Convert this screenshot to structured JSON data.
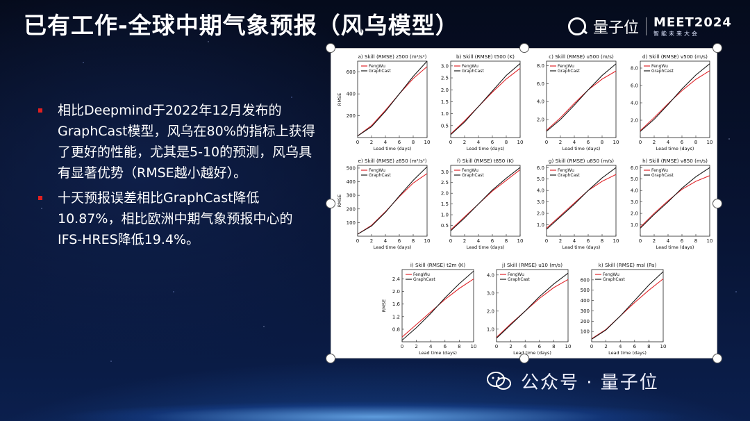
{
  "slide": {
    "title": "已有工作-全球中期气象预报（风乌模型）",
    "bullets": [
      "相比Deepmind于2022年12月发布的GraphCast模型，风乌在80%的指标上获得了更好的性能，尤其是5-10的预测，风乌具有显著优势（RMSE越小越好）。",
      "十天预报误差相比GraphCast降低10.87%，相比欧洲中期气象预报中心的IFS-HRES降低19.4%。"
    ]
  },
  "logo": {
    "brand": "量子位",
    "event": "MEET2024",
    "event_sub": "智能未来大会"
  },
  "watermark": {
    "text": "公众号 · 量子位"
  },
  "colors": {
    "fengwu": "#e0262b",
    "graphcast": "#1a1a1a",
    "bullet": "#e02020"
  },
  "chart_data": [
    {
      "type": "line",
      "title": "a) Skill (RMSE) z500 (m²/s²)",
      "xlabel": "Lead time (days)",
      "ylabel": "RMSE",
      "xlim": [
        0,
        10
      ],
      "ylim": [
        0,
        700
      ],
      "yticks": [
        200,
        400,
        600
      ],
      "xticks": [
        0,
        2,
        4,
        6,
        8,
        10
      ],
      "x": [
        0,
        2,
        4,
        6,
        8,
        10
      ],
      "series": [
        {
          "name": "FengWu",
          "values": [
            15,
            110,
            250,
            400,
            540,
            650
          ]
        },
        {
          "name": "GraphCast",
          "values": [
            15,
            100,
            240,
            400,
            560,
            700
          ]
        }
      ]
    },
    {
      "type": "line",
      "title": "b) Skill (RMSE) t500 (K)",
      "xlabel": "Lead time (days)",
      "ylabel": "",
      "xlim": [
        0,
        10
      ],
      "ylim": [
        0,
        3.2
      ],
      "yticks": [
        0.5,
        1.0,
        1.5,
        2.0,
        2.5,
        3.0
      ],
      "xticks": [
        0,
        2,
        4,
        6,
        8,
        10
      ],
      "x": [
        0,
        2,
        4,
        6,
        8,
        10
      ],
      "series": [
        {
          "name": "FengWu",
          "values": [
            0.15,
            0.7,
            1.3,
            1.9,
            2.45,
            2.9
          ]
        },
        {
          "name": "GraphCast",
          "values": [
            0.12,
            0.65,
            1.3,
            1.95,
            2.6,
            3.1
          ]
        }
      ]
    },
    {
      "type": "line",
      "title": "c) Skill (RMSE) u500 (m/s)",
      "xlabel": "Lead time (days)",
      "ylabel": "",
      "xlim": [
        0,
        10
      ],
      "ylim": [
        0,
        8.5
      ],
      "yticks": [
        2.0,
        4.0,
        6.0,
        8.0
      ],
      "xticks": [
        0,
        2,
        4,
        6,
        8,
        10
      ],
      "x": [
        0,
        2,
        4,
        6,
        8,
        10
      ],
      "series": [
        {
          "name": "FengWu",
          "values": [
            0.8,
            2.2,
            3.8,
            5.3,
            6.5,
            7.4
          ]
        },
        {
          "name": "GraphCast",
          "values": [
            0.7,
            2.0,
            3.6,
            5.3,
            6.9,
            8.2
          ]
        }
      ]
    },
    {
      "type": "line",
      "title": "d) Skill (RMSE) v500 (m/s)",
      "xlabel": "Lead time (days)",
      "ylabel": "",
      "xlim": [
        0,
        10
      ],
      "ylim": [
        0,
        8.8
      ],
      "yticks": [
        2.0,
        4.0,
        6.0,
        8.0
      ],
      "xticks": [
        0,
        2,
        4,
        6,
        8,
        10
      ],
      "x": [
        0,
        2,
        4,
        6,
        8,
        10
      ],
      "series": [
        {
          "name": "FengWu",
          "values": [
            0.8,
            2.3,
            3.9,
            5.4,
            6.7,
            7.7
          ]
        },
        {
          "name": "GraphCast",
          "values": [
            0.7,
            2.1,
            3.8,
            5.6,
            7.2,
            8.5
          ]
        }
      ]
    },
    {
      "type": "line",
      "title": "e) Skill (RMSE) z850 (m²/s²)",
      "xlabel": "Lead time (days)",
      "ylabel": "RMSE",
      "xlim": [
        0,
        10
      ],
      "ylim": [
        0,
        520
      ],
      "yticks": [
        100,
        200,
        300,
        400,
        500
      ],
      "xticks": [
        0,
        2,
        4,
        6,
        8,
        10
      ],
      "x": [
        0,
        2,
        4,
        6,
        8,
        10
      ],
      "series": [
        {
          "name": "FengWu",
          "values": [
            15,
            80,
            180,
            290,
            390,
            460
          ]
        },
        {
          "name": "GraphCast",
          "values": [
            15,
            75,
            175,
            295,
            410,
            510
          ]
        }
      ]
    },
    {
      "type": "line",
      "title": "f) Skill (RMSE) t850 (K)",
      "xlabel": "Lead time (days)",
      "ylabel": "",
      "xlim": [
        0,
        10
      ],
      "ylim": [
        0,
        3.3
      ],
      "yticks": [
        0.5,
        1.0,
        1.5,
        2.0,
        2.5,
        3.0
      ],
      "xticks": [
        0,
        2,
        4,
        6,
        8,
        10
      ],
      "x": [
        0,
        2,
        4,
        6,
        8,
        10
      ],
      "series": [
        {
          "name": "FengWu",
          "values": [
            0.3,
            0.9,
            1.5,
            2.1,
            2.6,
            3.1
          ]
        },
        {
          "name": "GraphCast",
          "values": [
            0.25,
            0.85,
            1.5,
            2.15,
            2.7,
            3.2
          ]
        }
      ]
    },
    {
      "type": "line",
      "title": "g) Skill (RMSE) u850 (m/s)",
      "xlabel": "Lead time (days)",
      "ylabel": "",
      "xlim": [
        0,
        10
      ],
      "ylim": [
        0,
        6.2
      ],
      "yticks": [
        1.0,
        2.0,
        3.0,
        4.0,
        5.0,
        6.0
      ],
      "xticks": [
        0,
        2,
        4,
        6,
        8,
        10
      ],
      "x": [
        0,
        2,
        4,
        6,
        8,
        10
      ],
      "series": [
        {
          "name": "FengWu",
          "values": [
            0.7,
            1.8,
            2.9,
            4.0,
            4.8,
            5.4
          ]
        },
        {
          "name": "GraphCast",
          "values": [
            0.6,
            1.7,
            2.8,
            4.0,
            5.1,
            6.0
          ]
        }
      ]
    },
    {
      "type": "line",
      "title": "h) Skill (RMSE) v850 (m/s)",
      "xlabel": "Lead time (days)",
      "ylabel": "",
      "xlim": [
        0,
        10
      ],
      "ylim": [
        0,
        6.2
      ],
      "yticks": [
        1.0,
        2.0,
        3.0,
        4.0,
        5.0,
        6.0
      ],
      "xticks": [
        0,
        2,
        4,
        6,
        8,
        10
      ],
      "x": [
        0,
        2,
        4,
        6,
        8,
        10
      ],
      "series": [
        {
          "name": "FengWu",
          "values": [
            0.8,
            2.0,
            3.1,
            4.1,
            4.8,
            5.3
          ]
        },
        {
          "name": "GraphCast",
          "values": [
            0.7,
            1.9,
            3.0,
            4.2,
            5.2,
            6.0
          ]
        }
      ]
    },
    {
      "type": "line",
      "title": "i) Skill (RMSE) t2m (K)",
      "xlabel": "Lead time (days)",
      "ylabel": "RMSE",
      "xlim": [
        0,
        10
      ],
      "ylim": [
        0.4,
        2.7
      ],
      "yticks": [
        0.8,
        1.2,
        1.6,
        2.0,
        2.4
      ],
      "xticks": [
        0,
        2,
        4,
        6,
        8,
        10
      ],
      "x": [
        0,
        2,
        4,
        6,
        8,
        10
      ],
      "series": [
        {
          "name": "FengWu",
          "values": [
            0.55,
            0.95,
            1.35,
            1.75,
            2.1,
            2.4
          ]
        },
        {
          "name": "GraphCast",
          "values": [
            0.45,
            0.85,
            1.3,
            1.8,
            2.25,
            2.65
          ]
        }
      ]
    },
    {
      "type": "line",
      "title": "j) Skill (RMSE) u10 (m/s)",
      "xlabel": "Lead time (days)",
      "ylabel": "",
      "xlim": [
        0,
        10
      ],
      "ylim": [
        0.3,
        4.3
      ],
      "yticks": [
        1.0,
        2.0,
        3.0,
        4.0
      ],
      "xticks": [
        0,
        2,
        4,
        6,
        8,
        10
      ],
      "x": [
        0,
        2,
        4,
        6,
        8,
        10
      ],
      "series": [
        {
          "name": "FengWu",
          "values": [
            0.55,
            1.3,
            2.0,
            2.7,
            3.3,
            3.75
          ]
        },
        {
          "name": "GraphCast",
          "values": [
            0.5,
            1.25,
            2.0,
            2.8,
            3.5,
            4.1
          ]
        }
      ]
    },
    {
      "type": "line",
      "title": "k) Skill (RMSE) msl (Pa)",
      "xlabel": "Lead time (days)",
      "ylabel": "",
      "xlim": [
        0,
        10
      ],
      "ylim": [
        0,
        700
      ],
      "yticks": [
        100,
        200,
        300,
        400,
        500,
        600
      ],
      "xticks": [
        0,
        2,
        4,
        6,
        8,
        10
      ],
      "x": [
        0,
        2,
        4,
        6,
        8,
        10
      ],
      "series": [
        {
          "name": "FengWu",
          "values": [
            30,
            120,
            250,
            380,
            500,
            610
          ]
        },
        {
          "name": "GraphCast",
          "values": [
            25,
            115,
            250,
            400,
            550,
            680
          ]
        }
      ]
    }
  ]
}
